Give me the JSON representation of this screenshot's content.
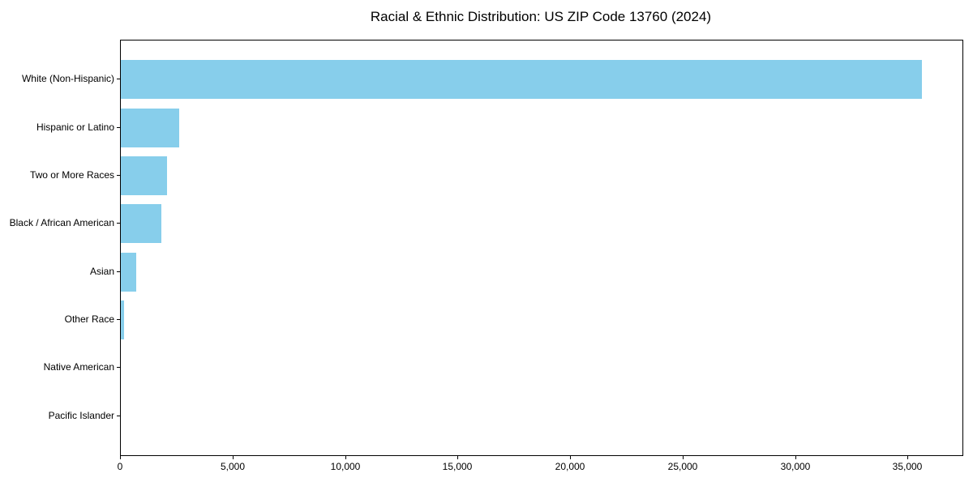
{
  "figure": {
    "background": "#ffffff",
    "text_color": "#000000",
    "spine_color": "#000000"
  },
  "chart_data": {
    "type": "bar",
    "orientation": "horizontal",
    "title": "Racial & Ethnic Distribution: US ZIP Code 13760 (2024)",
    "xlabel": "",
    "ylabel": "",
    "categories": [
      "White (Non-Hispanic)",
      "Hispanic or Latino",
      "Two or More Races",
      "Black / African American",
      "Asian",
      "Other Race",
      "Native American",
      "Pacific Islander"
    ],
    "values": [
      35600,
      2600,
      2050,
      1800,
      680,
      150,
      0,
      0
    ],
    "bar_color": "#87CEEB",
    "xlim": [
      0,
      37400
    ],
    "x_ticks": [
      0,
      5000,
      10000,
      15000,
      20000,
      25000,
      30000,
      35000
    ],
    "x_tick_labels": [
      "0",
      "5,000",
      "10,000",
      "15,000",
      "20,000",
      "25,000",
      "30,000",
      "35,000"
    ],
    "grid": false,
    "legend": "none"
  }
}
